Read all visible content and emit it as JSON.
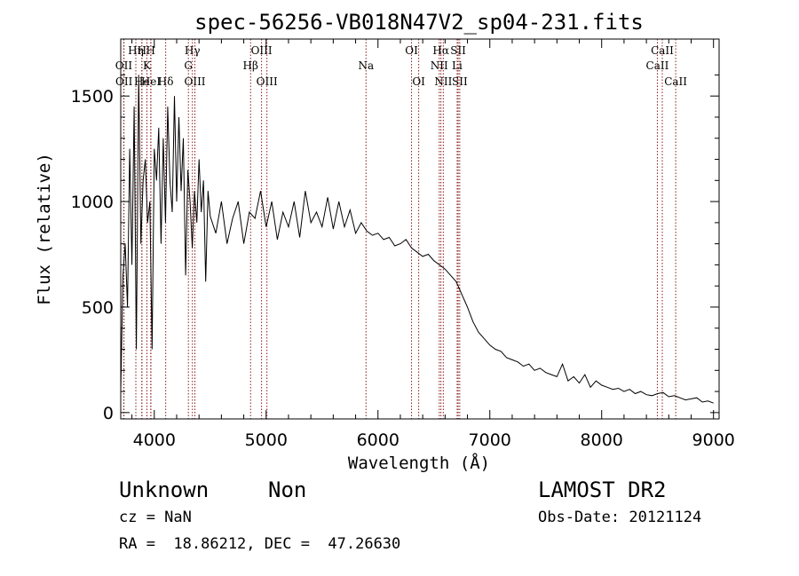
{
  "chart_data": {
    "type": "line",
    "title": "spec-56256-VB018N47V2_sp04-231.fits",
    "xlabel": "Wavelength (Å)",
    "ylabel": "Flux (relative)",
    "xlim": [
      3700,
      9050
    ],
    "ylim": [
      -30,
      1770
    ],
    "x_ticks": [
      4000,
      5000,
      6000,
      7000,
      8000,
      9000
    ],
    "y_ticks": [
      0,
      500,
      1000,
      1500
    ],
    "x_tick_labels": [
      "4000",
      "5000",
      "6000",
      "7000",
      "8000",
      "9000"
    ],
    "y_tick_labels": [
      "0",
      "500",
      "1000",
      "1500"
    ],
    "grid": false,
    "legend": "none",
    "line_color": "#000000",
    "marker_color": "#8b1a1a",
    "spectrum": {
      "x": [
        3700,
        3720,
        3740,
        3760,
        3780,
        3800,
        3820,
        3840,
        3860,
        3880,
        3900,
        3920,
        3940,
        3960,
        3980,
        4000,
        4020,
        4040,
        4060,
        4080,
        4100,
        4120,
        4140,
        4160,
        4180,
        4200,
        4220,
        4240,
        4260,
        4280,
        4300,
        4320,
        4340,
        4360,
        4380,
        4400,
        4420,
        4440,
        4460,
        4480,
        4500,
        4550,
        4600,
        4650,
        4700,
        4750,
        4800,
        4850,
        4900,
        4950,
        5000,
        5050,
        5100,
        5150,
        5200,
        5250,
        5300,
        5350,
        5400,
        5450,
        5500,
        5550,
        5600,
        5650,
        5700,
        5750,
        5800,
        5850,
        5900,
        5950,
        6000,
        6050,
        6100,
        6150,
        6200,
        6250,
        6300,
        6350,
        6400,
        6450,
        6500,
        6550,
        6600,
        6650,
        6700,
        6750,
        6800,
        6850,
        6900,
        6950,
        7000,
        7050,
        7100,
        7150,
        7200,
        7250,
        7300,
        7350,
        7400,
        7450,
        7500,
        7550,
        7600,
        7650,
        7700,
        7750,
        7800,
        7850,
        7900,
        7950,
        8000,
        8050,
        8100,
        8150,
        8200,
        8250,
        8300,
        8350,
        8400,
        8450,
        8500,
        8550,
        8600,
        8650,
        8700,
        8750,
        8800,
        8850,
        8900,
        8950,
        9000
      ],
      "y": [
        100,
        650,
        800,
        500,
        1250,
        700,
        1450,
        300,
        1600,
        800,
        1100,
        1200,
        900,
        1000,
        300,
        1250,
        1100,
        1350,
        800,
        1300,
        900,
        1450,
        1100,
        950,
        1500,
        1000,
        1400,
        1050,
        1300,
        650,
        1150,
        1000,
        780,
        1050,
        900,
        1200,
        950,
        1100,
        620,
        1050,
        930,
        850,
        1000,
        800,
        920,
        1000,
        800,
        950,
        920,
        1050,
        880,
        1000,
        820,
        950,
        880,
        1000,
        830,
        1050,
        900,
        950,
        880,
        1020,
        870,
        1000,
        880,
        960,
        850,
        900,
        860,
        840,
        850,
        820,
        830,
        790,
        800,
        820,
        780,
        760,
        740,
        750,
        720,
        700,
        680,
        650,
        620,
        560,
        500,
        430,
        380,
        350,
        320,
        300,
        290,
        260,
        250,
        240,
        220,
        230,
        200,
        210,
        190,
        180,
        170,
        230,
        150,
        170,
        140,
        180,
        120,
        150,
        130,
        120,
        110,
        115,
        100,
        110,
        90,
        100,
        85,
        80,
        90,
        95,
        75,
        80,
        70,
        60,
        65,
        70,
        50,
        55,
        45
      ]
    },
    "line_markers": [
      {
        "label": "OII",
        "x": 3727,
        "row": 1
      },
      {
        "label": "OII",
        "x": 3729,
        "row": 2
      },
      {
        "label": "Hη",
        "x": 3835,
        "row": 0
      },
      {
        "label": "H",
        "x": 3889,
        "row": 0
      },
      {
        "label": "He",
        "x": 3889,
        "row": 2
      },
      {
        "label": "K",
        "x": 3934,
        "row": 1
      },
      {
        "label": "H",
        "x": 3968,
        "row": 0
      },
      {
        "label": "HeI",
        "x": 3970,
        "row": 2
      },
      {
        "label": "Hδ",
        "x": 4102,
        "row": 2
      },
      {
        "label": "Hγ",
        "x": 4341,
        "row": 0
      },
      {
        "label": "G",
        "x": 4305,
        "row": 1
      },
      {
        "label": "OIII",
        "x": 4363,
        "row": 2
      },
      {
        "label": "Hβ",
        "x": 4861,
        "row": 1
      },
      {
        "label": "OIII",
        "x": 4959,
        "row": 0
      },
      {
        "label": "OIII",
        "x": 5007,
        "row": 2
      },
      {
        "label": "Na",
        "x": 5893,
        "row": 1
      },
      {
        "label": "OI",
        "x": 6300,
        "row": 0
      },
      {
        "label": "OI",
        "x": 6364,
        "row": 2
      },
      {
        "label": "Hα",
        "x": 6563,
        "row": 0
      },
      {
        "label": "NII",
        "x": 6548,
        "row": 1
      },
      {
        "label": "NII",
        "x": 6584,
        "row": 2
      },
      {
        "label": "SII",
        "x": 6717,
        "row": 0
      },
      {
        "label": "Li",
        "x": 6708,
        "row": 1
      },
      {
        "label": "SII",
        "x": 6731,
        "row": 2
      },
      {
        "label": "CaII",
        "x": 8542,
        "row": 0
      },
      {
        "label": "CaII",
        "x": 8498,
        "row": 1
      },
      {
        "label": "CaII",
        "x": 8662,
        "row": 2
      }
    ]
  },
  "info": {
    "object_class": "Unknown",
    "subclass": "Non",
    "survey": "LAMOST DR2",
    "redshift_line": "cz = NaN",
    "obs_date_line": "Obs-Date: 20121124",
    "coords_line": "RA =  18.86212, DEC =  47.26630"
  }
}
